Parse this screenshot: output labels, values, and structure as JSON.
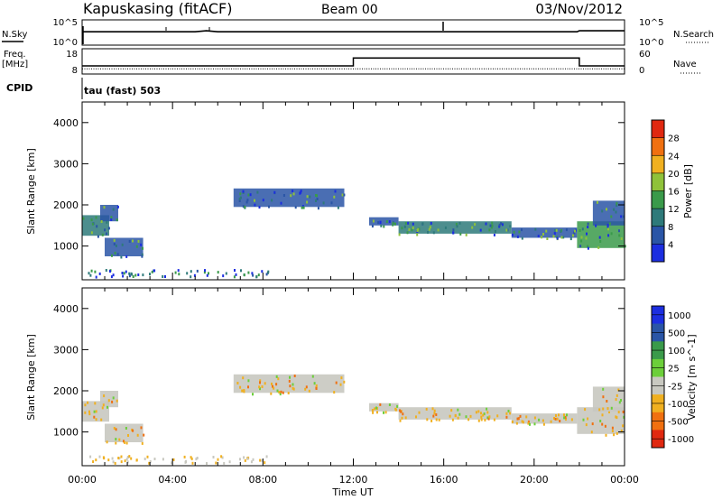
{
  "header": {
    "station": "Kapuskasing (fitACF)",
    "beam": "Beam 00",
    "date": "03/Nov/2012"
  },
  "noise_panel": {
    "left_label": "N.Sky",
    "left_ticks": [
      "10^5",
      "10^0"
    ],
    "right_label": "N.Search",
    "right_ticks": [
      "10^5",
      "10^0"
    ]
  },
  "freq_panel": {
    "left_label_line1": "Freq.",
    "left_label_line2": "[MHz]",
    "left_ticks": [
      "18",
      "8"
    ],
    "right_label": "Nave",
    "right_ticks": [
      "60",
      "0"
    ]
  },
  "cpid": {
    "label": "CPID",
    "program": "tau (fast) 503"
  },
  "x_axis": {
    "label": "Time UT",
    "ticks": [
      "00:00",
      "04:00",
      "08:00",
      "12:00",
      "16:00",
      "20:00",
      "00:00"
    ]
  },
  "chart_data": [
    {
      "type": "line",
      "title": "",
      "series": [
        {
          "name": "N.Sky",
          "x": [
            0,
            1,
            2,
            3,
            4,
            5,
            5.5,
            6,
            8,
            10,
            12,
            14,
            16,
            18,
            20,
            21.9,
            22,
            24
          ],
          "values": [
            1000.0,
            1000.0,
            1000.0,
            1000.0,
            1000.0,
            1000.0,
            2000.0,
            1000.0,
            1000.0,
            1000.0,
            1000.0,
            1000.0,
            1000.0,
            1000.0,
            1000.0,
            1000.0,
            2000.0,
            2000.0
          ]
        }
      ],
      "ylim_labels": [
        "10^0",
        "10^5"
      ]
    },
    {
      "type": "line",
      "title": "",
      "series": [
        {
          "name": "Freq.",
          "x": [
            0,
            11.9,
            12,
            21.9,
            22,
            24
          ],
          "values": [
            10,
            10,
            10,
            10,
            10,
            10
          ]
        },
        {
          "name": "Nave",
          "x": [
            0,
            11.9,
            12,
            21.9,
            22,
            24
          ],
          "values": [
            20,
            20,
            42,
            42,
            20,
            20
          ]
        }
      ],
      "ylim": [
        0,
        60
      ]
    },
    {
      "type": "heatmap",
      "title": "",
      "xlabel": "",
      "ylabel": "Slant Range [km]",
      "xlim": [
        0,
        24
      ],
      "ylim": [
        180,
        4500
      ],
      "yticks": [
        1000,
        2000,
        3000,
        4000
      ],
      "colorbar": {
        "label": "Power [dB]",
        "ticks": [
          "4",
          "8",
          "12",
          "16",
          "20",
          "24",
          "28"
        ],
        "colors": [
          "#1c2ee0",
          "#2a55a6",
          "#2e7a7a",
          "#3a9a4a",
          "#8fc23a",
          "#f0b020",
          "#f07010",
          "#e02810"
        ]
      },
      "bands": [
        {
          "t0": 0.0,
          "t1": 1.2,
          "r0": 1250,
          "r1": 1750,
          "level": 12
        },
        {
          "t0": 0.8,
          "t1": 1.6,
          "r0": 1600,
          "r1": 2000,
          "level": 8
        },
        {
          "t0": 1.0,
          "t1": 2.7,
          "r0": 750,
          "r1": 1200,
          "level": 6
        },
        {
          "t0": 6.7,
          "t1": 11.6,
          "r0": 1950,
          "r1": 2400,
          "level": 6
        },
        {
          "t0": 12.7,
          "t1": 14.0,
          "r0": 1500,
          "r1": 1700,
          "level": 8
        },
        {
          "t0": 14.0,
          "t1": 19.0,
          "r0": 1300,
          "r1": 1600,
          "level": 10
        },
        {
          "t0": 19.0,
          "t1": 21.9,
          "r0": 1200,
          "r1": 1450,
          "level": 8
        },
        {
          "t0": 21.9,
          "t1": 24.0,
          "r0": 950,
          "r1": 1600,
          "level": 16
        },
        {
          "t0": 22.6,
          "t1": 24.0,
          "r0": 1500,
          "r1": 2100,
          "level": 8
        }
      ]
    },
    {
      "type": "heatmap",
      "title": "",
      "xlabel": "Time UT",
      "ylabel": "Slant Range [km]",
      "xlim": [
        0,
        24
      ],
      "ylim": [
        180,
        4500
      ],
      "yticks": [
        1000,
        2000,
        3000,
        4000
      ],
      "colorbar": {
        "label": "Velocity [m s^-1]",
        "ticks": [
          "1000",
          "500",
          "100",
          "25",
          "-25",
          "-100",
          "-500",
          "-1000"
        ],
        "colors": [
          "#1c2ee0",
          "#2a55a6",
          "#3a9a4a",
          "#6ccf3a",
          "#c8c8c0",
          "#f0b020",
          "#f07010",
          "#e02810"
        ]
      },
      "bands": [
        {
          "t0": 0.0,
          "t1": 1.2,
          "r0": 1250,
          "r1": 1750,
          "level": 25
        },
        {
          "t0": 0.8,
          "t1": 1.6,
          "r0": 1600,
          "r1": 2000,
          "level": 25
        },
        {
          "t0": 1.0,
          "t1": 2.7,
          "r0": 750,
          "r1": 1200,
          "level": 25
        },
        {
          "t0": 6.7,
          "t1": 11.6,
          "r0": 1950,
          "r1": 2400,
          "level": 25
        },
        {
          "t0": 12.7,
          "t1": 14.0,
          "r0": 1500,
          "r1": 1700,
          "level": 25
        },
        {
          "t0": 14.0,
          "t1": 19.0,
          "r0": 1300,
          "r1": 1600,
          "level": 25
        },
        {
          "t0": 19.0,
          "t1": 21.9,
          "r0": 1200,
          "r1": 1450,
          "level": 25
        },
        {
          "t0": 21.9,
          "t1": 24.0,
          "r0": 950,
          "r1": 1600,
          "level": 25
        },
        {
          "t0": 22.6,
          "t1": 24.0,
          "r0": 1500,
          "r1": 2100,
          "level": 25
        }
      ]
    }
  ]
}
